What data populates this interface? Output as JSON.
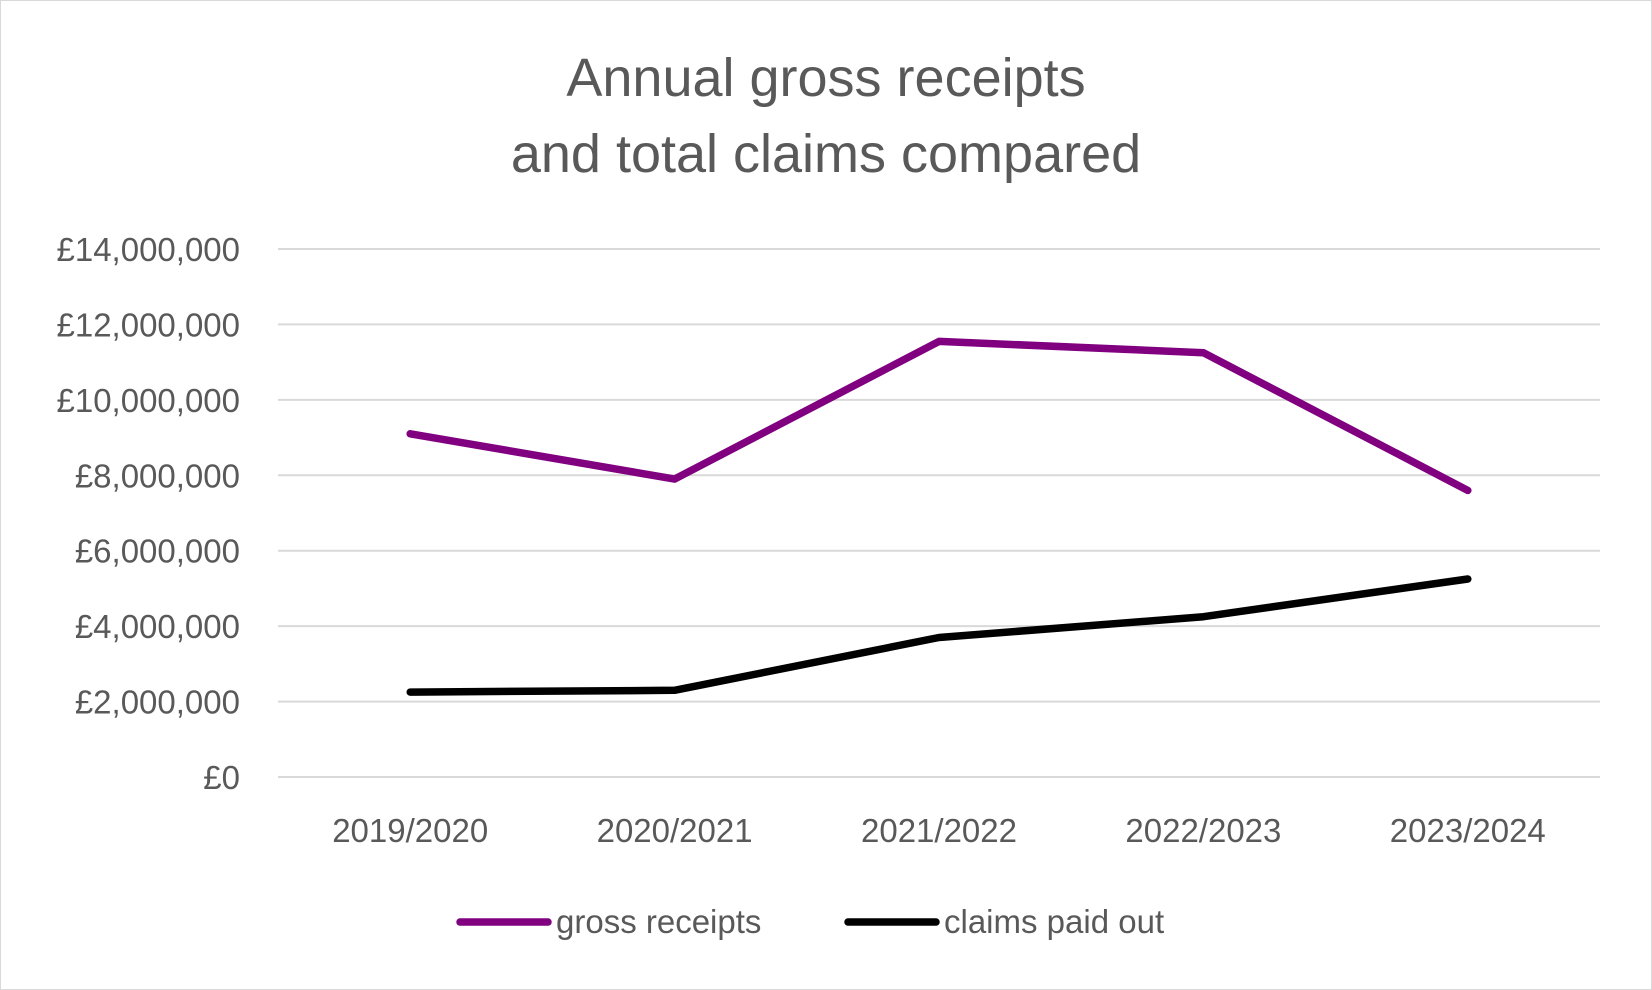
{
  "chart_data": {
    "type": "line",
    "title": [
      "Annual gross receipts",
      "and total claims compared"
    ],
    "xlabel": "",
    "ylabel": "",
    "categories": [
      "2019/2020",
      "2020/2021",
      "2021/2022",
      "2022/2023",
      "2023/2024"
    ],
    "ylim": [
      0,
      14000000
    ],
    "yticks": [
      0,
      2000000,
      4000000,
      6000000,
      8000000,
      10000000,
      12000000,
      14000000
    ],
    "ytick_labels": [
      "£0",
      "£2,000,000",
      "£4,000,000",
      "£6,000,000",
      "£8,000,000",
      "£10,000,000",
      "£12,000,000",
      "£14,000,000"
    ],
    "grid": true,
    "legend_position": "bottom",
    "series": [
      {
        "name": "gross receipts",
        "color": "#800080",
        "values": [
          9100000,
          7900000,
          11550000,
          11250000,
          7600000
        ]
      },
      {
        "name": "claims paid out",
        "color": "#000000",
        "values": [
          2250000,
          2300000,
          3700000,
          4250000,
          5250000
        ]
      }
    ]
  }
}
